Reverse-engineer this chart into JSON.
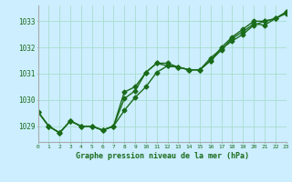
{
  "title": "Graphe pression niveau de la mer (hPa)",
  "background_color": "#cceeff",
  "grid_color": "#aaddcc",
  "line_color": "#1a6b1a",
  "x_values": [
    0,
    1,
    2,
    3,
    4,
    5,
    6,
    7,
    8,
    9,
    10,
    11,
    12,
    13,
    14,
    15,
    16,
    17,
    18,
    19,
    20,
    21,
    22,
    23
  ],
  "line1": [
    1029.55,
    1029.0,
    1028.75,
    1029.2,
    1029.0,
    1029.0,
    1028.85,
    1029.0,
    1030.05,
    1030.35,
    1031.05,
    1031.4,
    1031.3,
    1031.25,
    1031.15,
    1031.15,
    1031.6,
    1031.95,
    1032.25,
    1032.5,
    1032.85,
    1033.0,
    1033.1,
    1033.3
  ],
  "line2": [
    1029.55,
    1029.0,
    1028.75,
    1029.2,
    1029.0,
    1029.0,
    1028.85,
    1029.0,
    1030.3,
    1030.5,
    1031.05,
    1031.4,
    1031.4,
    1031.25,
    1031.15,
    1031.15,
    1031.5,
    1032.0,
    1032.4,
    1032.7,
    1033.0,
    1033.0,
    1033.1,
    1033.35
  ],
  "line3": [
    1029.55,
    1029.0,
    1028.75,
    1029.2,
    1029.0,
    1029.0,
    1028.85,
    1029.0,
    1029.6,
    1030.1,
    1030.5,
    1031.05,
    1031.3,
    1031.25,
    1031.15,
    1031.15,
    1031.5,
    1031.9,
    1032.35,
    1032.6,
    1032.9,
    1032.85,
    1033.1,
    1033.35
  ],
  "ylim": [
    1028.4,
    1033.6
  ],
  "yticks": [
    1029,
    1030,
    1031,
    1032,
    1033
  ],
  "xlim": [
    0,
    23
  ],
  "marker": "D",
  "marker_size": 2.5,
  "line_width": 1.0
}
